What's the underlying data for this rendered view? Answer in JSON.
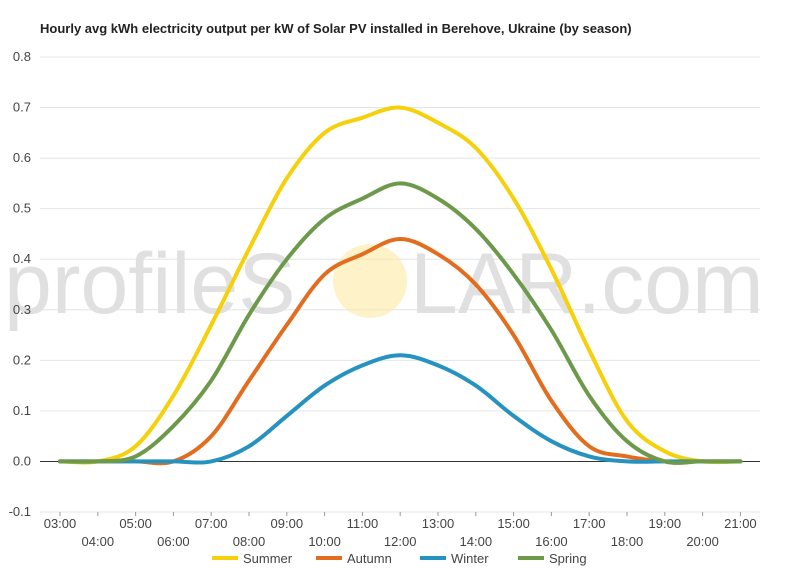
{
  "chart_data": {
    "type": "line",
    "title": "Hourly avg kWh electricity output per kW of Solar PV installed in Berehove, Ukraine (by season)",
    "xlabel": "",
    "ylabel": "",
    "categories": [
      "03:00",
      "04:00",
      "05:00",
      "06:00",
      "07:00",
      "08:00",
      "09:00",
      "10:00",
      "11:00",
      "12:00",
      "13:00",
      "14:00",
      "15:00",
      "16:00",
      "17:00",
      "18:00",
      "19:00",
      "20:00",
      "21:00"
    ],
    "ylim": [
      -0.1,
      0.8
    ],
    "yticks": [
      "0.8",
      "0.7",
      "0.6",
      "0.5",
      "0.4",
      "0.3",
      "0.2",
      "0.1",
      "0.0",
      "-0.1"
    ],
    "yticks_values": [
      0.8,
      0.7,
      0.6,
      0.5,
      0.4,
      0.3,
      0.2,
      0.1,
      0.0,
      -0.1
    ],
    "grid": true,
    "legend_position": "bottom",
    "series": [
      {
        "name": "Summer",
        "color": "#f5d00b",
        "values": [
          0.0,
          0.0,
          0.03,
          0.13,
          0.27,
          0.42,
          0.56,
          0.65,
          0.68,
          0.7,
          0.67,
          0.62,
          0.52,
          0.38,
          0.22,
          0.08,
          0.02,
          0.0,
          0.0
        ]
      },
      {
        "name": "Autumn",
        "color": "#e36d1e",
        "values": [
          0.0,
          0.0,
          0.0,
          0.0,
          0.05,
          0.16,
          0.27,
          0.37,
          0.41,
          0.44,
          0.41,
          0.35,
          0.25,
          0.12,
          0.03,
          0.01,
          0.0,
          0.0,
          0.0
        ]
      },
      {
        "name": "Winter",
        "color": "#2592c0",
        "values": [
          0.0,
          0.0,
          0.0,
          0.0,
          0.0,
          0.03,
          0.09,
          0.15,
          0.19,
          0.21,
          0.19,
          0.15,
          0.09,
          0.04,
          0.01,
          0.0,
          0.0,
          0.0,
          0.0
        ]
      },
      {
        "name": "Spring",
        "color": "#6c9a4a",
        "values": [
          0.0,
          0.0,
          0.01,
          0.07,
          0.16,
          0.29,
          0.4,
          0.48,
          0.52,
          0.55,
          0.52,
          0.46,
          0.37,
          0.26,
          0.13,
          0.04,
          0.0,
          0.0,
          0.0
        ]
      }
    ]
  },
  "watermark": {
    "text_left": "profileS",
    "text_right": "LAR.com",
    "sun_color": "#fbe79a"
  }
}
